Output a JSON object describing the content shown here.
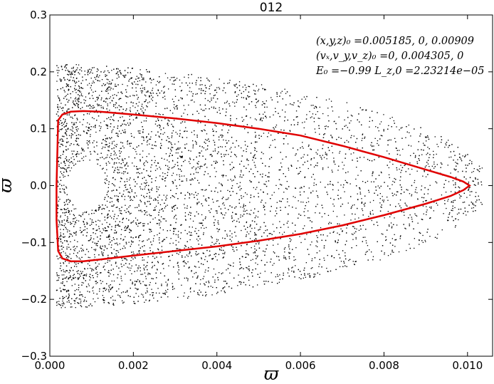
{
  "chart_data": {
    "type": "scatter",
    "title": "012",
    "xlabel": "ϖ",
    "ylabel": "ϖ̇",
    "xlim": [
      0.0,
      0.0106
    ],
    "ylim": [
      -0.3,
      0.3
    ],
    "xticks": [
      "0.000",
      "0.002",
      "0.004",
      "0.006",
      "0.008",
      "0.010"
    ],
    "yticks": [
      "0.3",
      "0.2",
      "0.1",
      "0.0",
      "−0.1",
      "−0.2",
      "−0.3"
    ],
    "grid": false,
    "annotations": [
      "(x,y,z)₀ =0.005185, 0, 0.00909",
      "(vₓ,v_y,v_z)₀ =0, 0.004305, 0",
      "E₀ =−0.99  L_z,0 =2.23214e−05"
    ],
    "series": [
      {
        "type": "line",
        "color": "#e00000",
        "closed": true,
        "x": [
          0.0002,
          0.0003,
          0.0005,
          0.0008,
          0.0012,
          0.002,
          0.003,
          0.004,
          0.005,
          0.006,
          0.007,
          0.008,
          0.009,
          0.0096,
          0.0099,
          0.01005,
          0.0099,
          0.0096,
          0.009,
          0.008,
          0.007,
          0.006,
          0.005,
          0.004,
          0.003,
          0.002,
          0.0012,
          0.0008,
          0.0005,
          0.0003,
          0.0002,
          0.00016,
          0.00016,
          0.00018
        ],
        "y": [
          0.115,
          0.125,
          0.13,
          0.131,
          0.13,
          0.125,
          0.118,
          0.11,
          0.1,
          0.088,
          0.07,
          0.05,
          0.028,
          0.015,
          0.007,
          0.0,
          -0.008,
          -0.018,
          -0.032,
          -0.052,
          -0.07,
          -0.085,
          -0.097,
          -0.107,
          -0.115,
          -0.123,
          -0.13,
          -0.133,
          -0.133,
          -0.128,
          -0.115,
          -0.06,
          0.0,
          0.06
        ]
      },
      {
        "type": "scatter",
        "color": "#000000",
        "description_count": 7000
      }
    ]
  }
}
